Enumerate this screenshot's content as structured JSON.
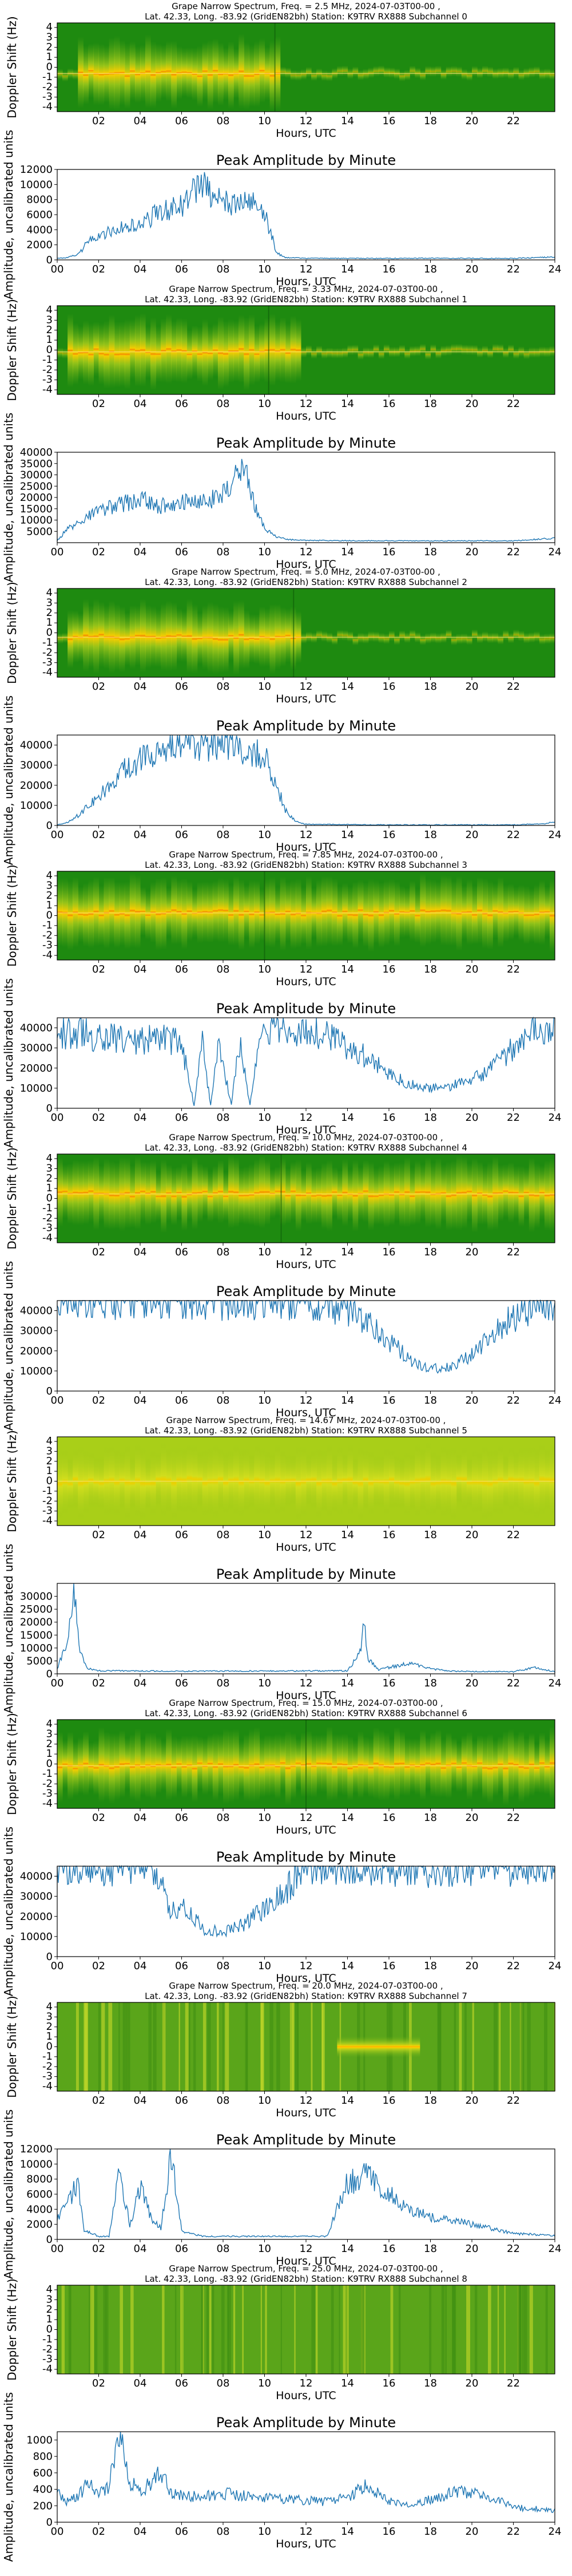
{
  "figure": {
    "title_template": "Grape Narrow Spectrum, Freq. = {freq} MHz, 2024-07-03T00-00 ,",
    "subtitle_template": "Lat.  42.33, Long. -83.92 (GridEN82bh) Station: K9TRV RX888 Subchannel {sub}",
    "spec_xlabel": "Hours, UTC",
    "spec_ylabel": "Doppler Shift (Hz)",
    "amp_title": "Peak Amplitude by Minute",
    "amp_xlabel": "Hours, UTC",
    "amp_ylabel": "Amplitude, uncalibrated units",
    "spec_xticks": [
      "02",
      "04",
      "06",
      "08",
      "10",
      "12",
      "14",
      "16",
      "18",
      "20",
      "22"
    ],
    "amp_xticks": [
      "00",
      "02",
      "04",
      "06",
      "08",
      "10",
      "12",
      "14",
      "16",
      "18",
      "20",
      "22",
      "24"
    ],
    "spec_yticks": [
      "4",
      "3",
      "2",
      "1",
      "0",
      "-1",
      "-2",
      "-3",
      "-4"
    ],
    "colors": {
      "line": "#1f77b4",
      "spec_bg": "#1e8a10",
      "spec_mid": "#b6d31c",
      "spec_hot": "#ff8c00"
    }
  },
  "chart_data": [
    {
      "type": "heatmap",
      "freq": "2.5",
      "subchannel": "0",
      "amp": {
        "type": "line",
        "ylim": [
          0,
          12000
        ],
        "yticks": [
          0,
          2000,
          4000,
          6000,
          8000,
          10000,
          12000
        ],
        "keyframes": [
          [
            0,
            200
          ],
          [
            0.5,
            300
          ],
          [
            1,
            700
          ],
          [
            1.5,
            2400
          ],
          [
            2,
            3200
          ],
          [
            3,
            4200
          ],
          [
            4,
            4600
          ],
          [
            5,
            6500
          ],
          [
            6,
            7200
          ],
          [
            6.5,
            8800
          ],
          [
            7,
            10500
          ],
          [
            7.5,
            8200
          ],
          [
            8,
            7600
          ],
          [
            9,
            7600
          ],
          [
            9.5,
            7400
          ],
          [
            10,
            6200
          ],
          [
            10.3,
            3500
          ],
          [
            10.6,
            900
          ],
          [
            11,
            300
          ],
          [
            12,
            220
          ],
          [
            14,
            200
          ],
          [
            18,
            220
          ],
          [
            22,
            200
          ],
          [
            24,
            400
          ]
        ]
      },
      "spectro": {
        "style": "dense",
        "band_y": 0.57,
        "band_x": [
          0.9,
          10.6
        ],
        "edge_x": 10.5
      }
    },
    {
      "type": "heatmap",
      "freq": "3.33",
      "subchannel": "1",
      "amp": {
        "type": "line",
        "ylim": [
          0,
          40000
        ],
        "yticks": [
          5000,
          10000,
          15000,
          20000,
          25000,
          30000,
          35000,
          40000
        ],
        "keyframes": [
          [
            0,
            1000
          ],
          [
            0.5,
            6000
          ],
          [
            1,
            9000
          ],
          [
            2,
            14000
          ],
          [
            3,
            17000
          ],
          [
            4,
            19000
          ],
          [
            5,
            16000
          ],
          [
            6,
            19000
          ],
          [
            7,
            18000
          ],
          [
            8,
            21000
          ],
          [
            8.5,
            29000
          ],
          [
            9,
            33000
          ],
          [
            9.3,
            24000
          ],
          [
            9.7,
            12000
          ],
          [
            10,
            6000
          ],
          [
            10.5,
            3000
          ],
          [
            11,
            1500
          ],
          [
            12,
            1000
          ],
          [
            16,
            800
          ],
          [
            22,
            800
          ],
          [
            24,
            2000
          ]
        ]
      },
      "spectro": {
        "style": "dense",
        "band_y": 0.52,
        "band_x": [
          0.5,
          11.5
        ],
        "edge_x": 10.2
      }
    },
    {
      "type": "heatmap",
      "freq": "5.0",
      "subchannel": "2",
      "amp": {
        "type": "line",
        "ylim": [
          0,
          45000
        ],
        "yticks": [
          0,
          10000,
          20000,
          30000,
          40000
        ],
        "keyframes": [
          [
            0,
            300
          ],
          [
            0.5,
            1500
          ],
          [
            1,
            5000
          ],
          [
            2,
            14000
          ],
          [
            3,
            26000
          ],
          [
            4,
            32000
          ],
          [
            5,
            36000
          ],
          [
            6,
            40000
          ],
          [
            7,
            41000
          ],
          [
            8,
            41000
          ],
          [
            9,
            39000
          ],
          [
            10,
            35000
          ],
          [
            10.5,
            22000
          ],
          [
            11,
            8000
          ],
          [
            11.5,
            2000
          ],
          [
            12,
            600
          ],
          [
            16,
            300
          ],
          [
            22,
            300
          ],
          [
            23.5,
            900
          ],
          [
            24,
            1800
          ]
        ]
      },
      "spectro": {
        "style": "dense",
        "band_y": 0.55,
        "band_x": [
          0.5,
          11.5
        ],
        "edge_x": 11.4
      }
    },
    {
      "type": "heatmap",
      "freq": "7.85",
      "subchannel": "3",
      "amp": {
        "type": "line",
        "ylim": [
          0,
          45000
        ],
        "yticks": [
          0,
          10000,
          20000,
          30000,
          40000
        ],
        "keyframes": [
          [
            0,
            38000
          ],
          [
            2,
            36000
          ],
          [
            4,
            34000
          ],
          [
            5,
            35000
          ],
          [
            6,
            32000
          ],
          [
            6.6,
            1500
          ],
          [
            7,
            32000
          ],
          [
            7.4,
            1500
          ],
          [
            7.8,
            33000
          ],
          [
            8.4,
            1500
          ],
          [
            8.8,
            33000
          ],
          [
            9.3,
            1500
          ],
          [
            9.8,
            38000
          ],
          [
            11,
            40000
          ],
          [
            13,
            36000
          ],
          [
            15,
            25000
          ],
          [
            16,
            17000
          ],
          [
            17,
            12000
          ],
          [
            18,
            10000
          ],
          [
            19,
            11000
          ],
          [
            20,
            14000
          ],
          [
            21,
            20000
          ],
          [
            22,
            30000
          ],
          [
            23,
            38000
          ],
          [
            24,
            40000
          ]
        ]
      },
      "spectro": {
        "style": "dense",
        "band_y": 0.47,
        "band_x": [
          0,
          24
        ],
        "edge_x": 10.0
      }
    },
    {
      "type": "heatmap",
      "freq": "10.0",
      "subchannel": "4",
      "amp": {
        "type": "line",
        "ylim": [
          0,
          45000
        ],
        "yticks": [
          0,
          10000,
          20000,
          30000,
          40000
        ],
        "keyframes": [
          [
            0,
            45000
          ],
          [
            10,
            45000
          ],
          [
            13,
            44000
          ],
          [
            14,
            40000
          ],
          [
            15,
            33000
          ],
          [
            16,
            25000
          ],
          [
            17,
            16000
          ],
          [
            18,
            11000
          ],
          [
            19,
            12000
          ],
          [
            20,
            18000
          ],
          [
            21,
            27000
          ],
          [
            22,
            37000
          ],
          [
            23,
            43000
          ],
          [
            24,
            45000
          ]
        ]
      },
      "spectro": {
        "style": "dense",
        "band_y": 0.45,
        "band_x": [
          0,
          24
        ],
        "edge_x": 10.8
      }
    },
    {
      "type": "heatmap",
      "freq": "14.67",
      "subchannel": "5",
      "amp": {
        "type": "line",
        "ylim": [
          0,
          35000
        ],
        "yticks": [
          0,
          5000,
          10000,
          15000,
          20000,
          25000,
          30000
        ],
        "keyframes": [
          [
            0,
            2000
          ],
          [
            0.5,
            12000
          ],
          [
            0.8,
            33000
          ],
          [
            1.1,
            8000
          ],
          [
            1.5,
            2000
          ],
          [
            2,
            1200
          ],
          [
            6,
            1000
          ],
          [
            14,
            1200
          ],
          [
            14.6,
            8000
          ],
          [
            14.8,
            19000
          ],
          [
            15,
            6000
          ],
          [
            15.5,
            1500
          ],
          [
            16,
            2500
          ],
          [
            17,
            4000
          ],
          [
            18,
            2000
          ],
          [
            19,
            1000
          ],
          [
            22,
            800
          ],
          [
            23,
            2500
          ],
          [
            24,
            800
          ]
        ]
      },
      "spectro": {
        "style": "light",
        "band_y": 0.5,
        "band_x": [
          0,
          24
        ],
        "edge_x": -1
      }
    },
    {
      "type": "heatmap",
      "freq": "15.0",
      "subchannel": "6",
      "amp": {
        "type": "line",
        "ylim": [
          0,
          45000
        ],
        "yticks": [
          0,
          10000,
          20000,
          30000,
          40000
        ],
        "keyframes": [
          [
            0,
            45000
          ],
          [
            4.5,
            45000
          ],
          [
            5,
            35000
          ],
          [
            5.5,
            22000
          ],
          [
            6,
            25000
          ],
          [
            6.5,
            20000
          ],
          [
            7,
            14000
          ],
          [
            8,
            12000
          ],
          [
            9,
            16000
          ],
          [
            10,
            24000
          ],
          [
            11,
            32000
          ],
          [
            11.5,
            40000
          ],
          [
            12,
            45000
          ],
          [
            16,
            45000
          ],
          [
            18,
            43000
          ],
          [
            24,
            45000
          ]
        ]
      },
      "spectro": {
        "style": "dense",
        "band_y": 0.52,
        "band_x": [
          0,
          24
        ],
        "edge_x": 12.0
      }
    },
    {
      "type": "heatmap",
      "freq": "20.0",
      "subchannel": "7",
      "amp": {
        "type": "line",
        "ylim": [
          0,
          12000
        ],
        "yticks": [
          0,
          2000,
          4000,
          6000,
          8000,
          10000,
          12000
        ],
        "keyframes": [
          [
            0,
            2500
          ],
          [
            0.3,
            4000
          ],
          [
            1,
            7500
          ],
          [
            1.3,
            1200
          ],
          [
            2,
            400
          ],
          [
            2.5,
            400
          ],
          [
            3,
            9000
          ],
          [
            3.5,
            2000
          ],
          [
            4,
            7000
          ],
          [
            4.5,
            3000
          ],
          [
            5,
            1500
          ],
          [
            5.5,
            11500
          ],
          [
            6,
            1200
          ],
          [
            7,
            400
          ],
          [
            13,
            400
          ],
          [
            13.5,
            4000
          ],
          [
            14,
            7500
          ],
          [
            15,
            8500
          ],
          [
            16,
            6000
          ],
          [
            17,
            4000
          ],
          [
            18,
            3000
          ],
          [
            20,
            2000
          ],
          [
            22,
            800
          ],
          [
            24,
            500
          ]
        ]
      },
      "spectro": {
        "style": "stripes",
        "band_y": 0.5,
        "band_x": [
          13.5,
          17.5
        ],
        "edge_x": -1
      }
    },
    {
      "type": "heatmap",
      "freq": "25.0",
      "subchannel": "8",
      "amp": {
        "type": "line",
        "ylim": [
          0,
          1100
        ],
        "yticks": [
          0,
          200,
          400,
          600,
          800,
          1000
        ],
        "keyframes": [
          [
            0,
            350
          ],
          [
            0.5,
            250
          ],
          [
            1,
            300
          ],
          [
            1.5,
            500
          ],
          [
            2,
            320
          ],
          [
            2.5,
            450
          ],
          [
            3,
            1050
          ],
          [
            3.5,
            500
          ],
          [
            4,
            350
          ],
          [
            5,
            600
          ],
          [
            5.5,
            350
          ],
          [
            7,
            300
          ],
          [
            8,
            350
          ],
          [
            10,
            300
          ],
          [
            13,
            250
          ],
          [
            14,
            300
          ],
          [
            15,
            450
          ],
          [
            16,
            250
          ],
          [
            17,
            200
          ],
          [
            18,
            280
          ],
          [
            19,
            350
          ],
          [
            20,
            380
          ],
          [
            21,
            300
          ],
          [
            22,
            180
          ],
          [
            24,
            150
          ]
        ]
      },
      "spectro": {
        "style": "stripes",
        "band_y": 0.5,
        "band_x": [
          0,
          0
        ],
        "edge_x": -1
      }
    }
  ]
}
